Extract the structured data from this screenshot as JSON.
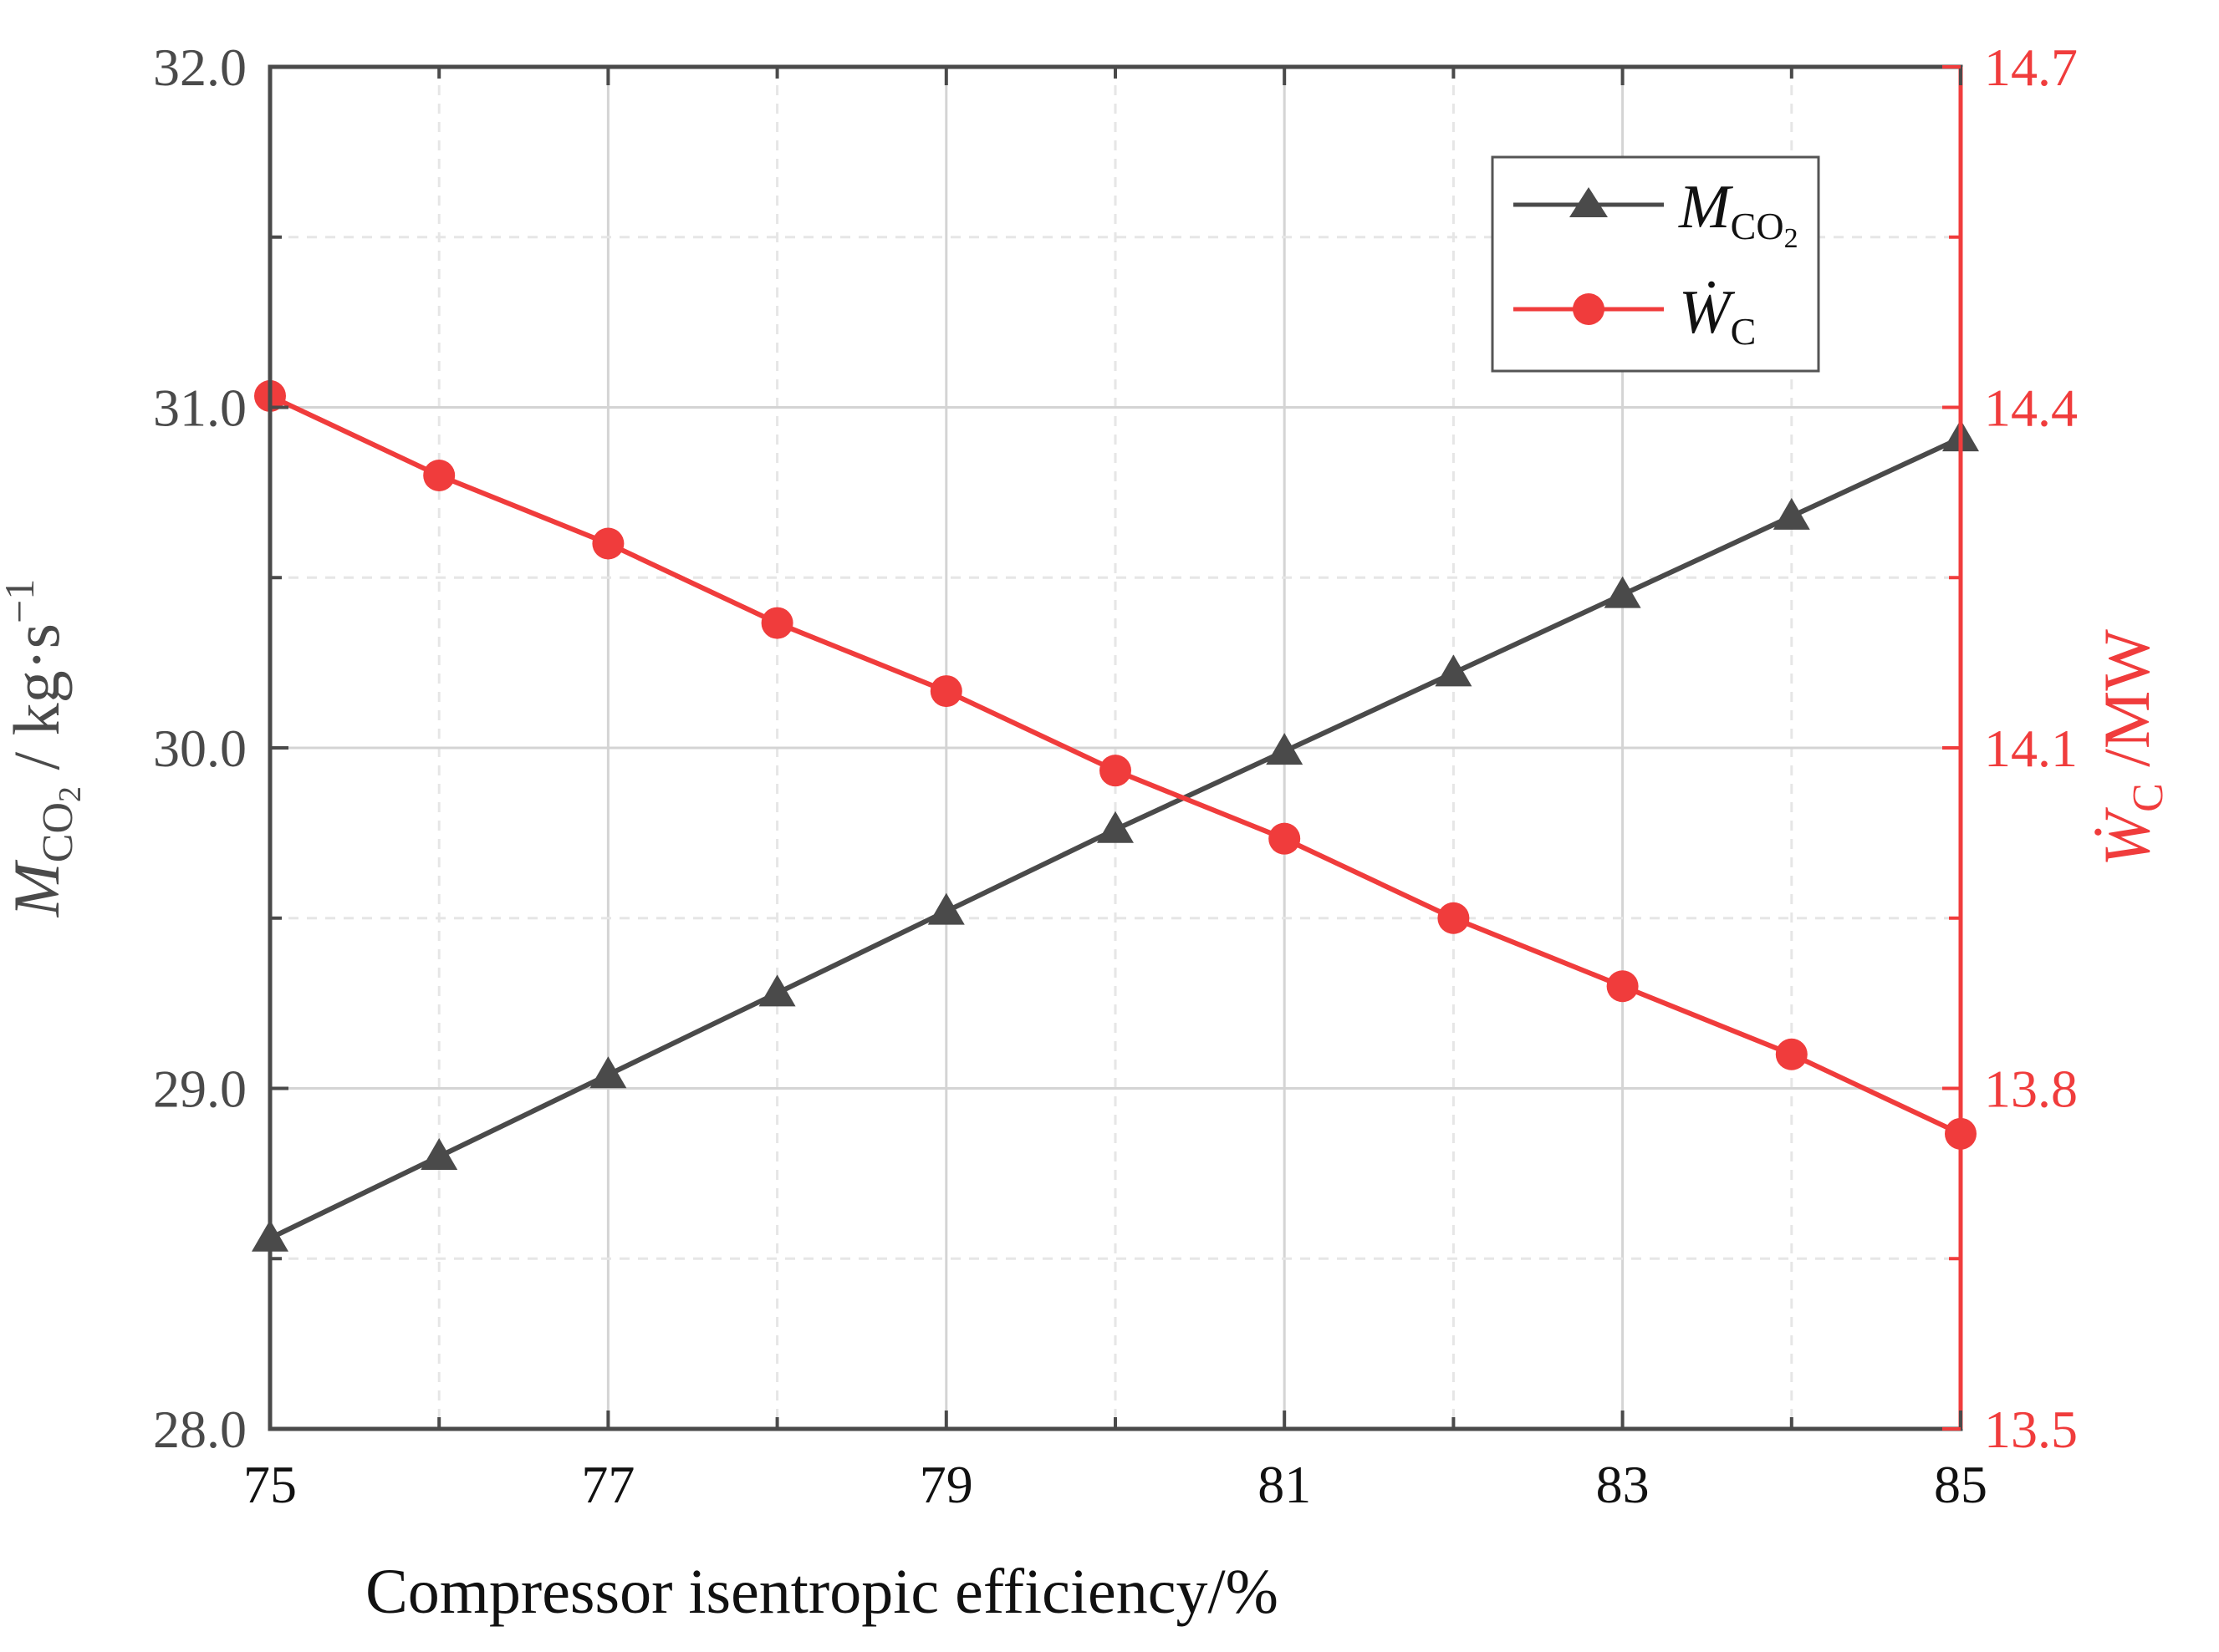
{
  "chart_data": {
    "type": "line",
    "xlabel": "Compressor isentropic efficiency/%",
    "x": [
      75,
      76,
      77,
      78,
      79,
      80,
      81,
      82,
      83,
      84,
      85
    ],
    "x_tick_labels": [
      "75",
      "77",
      "79",
      "81",
      "83",
      "85"
    ],
    "xlim": [
      75,
      85
    ],
    "y_left": {
      "label_main": "M",
      "label_sub": "CO",
      "label_sub2": "2",
      "label_unit": " / kg·s",
      "label_sup": "−1",
      "ylim": [
        28.0,
        32.0
      ],
      "tick_labels": [
        "28.0",
        "29.0",
        "30.0",
        "31.0",
        "32.0"
      ],
      "color": "#4a4a4a"
    },
    "y_right": {
      "label_main": "Ẇ",
      "label_sub": "C",
      "label_unit": " /MW",
      "ylim": [
        13.5,
        14.7
      ],
      "tick_labels": [
        "13.5",
        "13.8",
        "14.1",
        "14.4",
        "14.7"
      ],
      "color": "#f03c3c"
    },
    "series": [
      {
        "name": "M_CO2",
        "legend_main": "M",
        "legend_sub": "CO",
        "legend_sub2": "2",
        "axis": "left",
        "marker": "triangle",
        "color": "#4a4a4a",
        "values": [
          28.56,
          28.8,
          29.04,
          29.28,
          29.52,
          29.76,
          29.99,
          30.22,
          30.45,
          30.68,
          30.91
        ]
      },
      {
        "name": "W_C",
        "legend_main": "Ẇ",
        "legend_sub": "C",
        "axis": "right",
        "marker": "circle",
        "color": "#f03c3c",
        "values": [
          14.41,
          14.34,
          14.28,
          14.21,
          14.15,
          14.08,
          14.02,
          13.95,
          13.89,
          13.83,
          13.76
        ]
      }
    ],
    "grid": true,
    "legend_position": "top-right"
  }
}
